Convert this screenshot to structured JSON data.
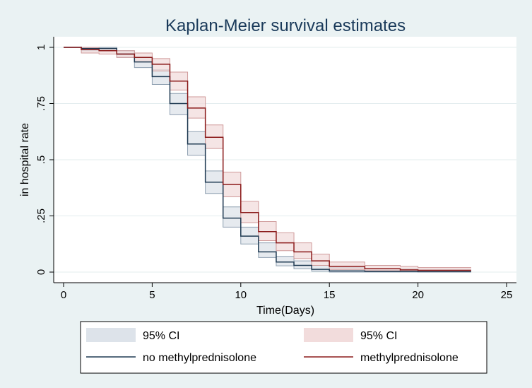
{
  "chart_data": {
    "type": "line",
    "title": "Kaplan-Meier survival estimates",
    "xlabel": "Time(Days)",
    "ylabel": "in hospital rate",
    "xlim": [
      0,
      25
    ],
    "ylim": [
      0,
      1
    ],
    "x_ticks": [
      "0",
      "5",
      "10",
      "15",
      "20",
      "25"
    ],
    "y_ticks": [
      "0",
      ".25",
      ".5",
      ".75",
      "1"
    ],
    "grid": true,
    "legend": {
      "position": "bottom",
      "entries": [
        "95% CI",
        "95% CI",
        "no methylprednisolone",
        "methylprednisolone"
      ]
    },
    "series": [
      {
        "name": "no methylprednisolone",
        "color": "#1f3a52",
        "ci_color": "#dde3ea",
        "ci_edge": "#8e9fb0",
        "steps": [
          {
            "t": 0,
            "s": 1.0,
            "lo": 1.0,
            "hi": 1.0
          },
          {
            "t": 1,
            "s": 0.995,
            "lo": 0.985,
            "hi": 1.0
          },
          {
            "t": 3,
            "s": 0.97,
            "lo": 0.955,
            "hi": 0.985
          },
          {
            "t": 4,
            "s": 0.935,
            "lo": 0.91,
            "hi": 0.955
          },
          {
            "t": 5,
            "s": 0.87,
            "lo": 0.835,
            "hi": 0.9
          },
          {
            "t": 6,
            "s": 0.75,
            "lo": 0.7,
            "hi": 0.795
          },
          {
            "t": 7,
            "s": 0.57,
            "lo": 0.52,
            "hi": 0.625
          },
          {
            "t": 8,
            "s": 0.4,
            "lo": 0.35,
            "hi": 0.45
          },
          {
            "t": 9,
            "s": 0.24,
            "lo": 0.2,
            "hi": 0.29
          },
          {
            "t": 10,
            "s": 0.16,
            "lo": 0.125,
            "hi": 0.2
          },
          {
            "t": 11,
            "s": 0.09,
            "lo": 0.065,
            "hi": 0.13
          },
          {
            "t": 12,
            "s": 0.045,
            "lo": 0.028,
            "hi": 0.07
          },
          {
            "t": 13,
            "s": 0.03,
            "lo": 0.015,
            "hi": 0.05
          },
          {
            "t": 14,
            "s": 0.012,
            "lo": 0.004,
            "hi": 0.03
          },
          {
            "t": 15,
            "s": 0.005,
            "lo": 0.0,
            "hi": 0.02
          },
          {
            "t": 17,
            "s": 0.003,
            "lo": 0.0,
            "hi": 0.015
          },
          {
            "t": 20,
            "s": 0.002,
            "lo": 0.0,
            "hi": 0.01
          },
          {
            "t": 23,
            "s": 0.002,
            "lo": 0.0,
            "hi": 0.01
          }
        ]
      },
      {
        "name": "methylprednisolone",
        "color": "#8b1a1a",
        "ci_color": "#f2dcdc",
        "ci_edge": "#cf9a9a",
        "steps": [
          {
            "t": 0,
            "s": 1.0,
            "lo": 1.0,
            "hi": 1.0
          },
          {
            "t": 1,
            "s": 0.99,
            "lo": 0.975,
            "hi": 1.0
          },
          {
            "t": 2,
            "s": 0.985,
            "lo": 0.97,
            "hi": 0.995
          },
          {
            "t": 3,
            "s": 0.97,
            "lo": 0.955,
            "hi": 0.985
          },
          {
            "t": 4,
            "s": 0.955,
            "lo": 0.935,
            "hi": 0.975
          },
          {
            "t": 5,
            "s": 0.925,
            "lo": 0.895,
            "hi": 0.95
          },
          {
            "t": 6,
            "s": 0.85,
            "lo": 0.81,
            "hi": 0.89
          },
          {
            "t": 7,
            "s": 0.73,
            "lo": 0.685,
            "hi": 0.78
          },
          {
            "t": 8,
            "s": 0.6,
            "lo": 0.55,
            "hi": 0.655
          },
          {
            "t": 9,
            "s": 0.39,
            "lo": 0.335,
            "hi": 0.445
          },
          {
            "t": 10,
            "s": 0.265,
            "lo": 0.22,
            "hi": 0.315
          },
          {
            "t": 11,
            "s": 0.18,
            "lo": 0.14,
            "hi": 0.225
          },
          {
            "t": 12,
            "s": 0.13,
            "lo": 0.095,
            "hi": 0.175
          },
          {
            "t": 13,
            "s": 0.09,
            "lo": 0.06,
            "hi": 0.13
          },
          {
            "t": 14,
            "s": 0.05,
            "lo": 0.03,
            "hi": 0.08
          },
          {
            "t": 15,
            "s": 0.025,
            "lo": 0.012,
            "hi": 0.045
          },
          {
            "t": 17,
            "s": 0.015,
            "lo": 0.006,
            "hi": 0.03
          },
          {
            "t": 19,
            "s": 0.01,
            "lo": 0.003,
            "hi": 0.025
          },
          {
            "t": 20,
            "s": 0.008,
            "lo": 0.002,
            "hi": 0.02
          },
          {
            "t": 23,
            "s": 0.008,
            "lo": 0.002,
            "hi": 0.02
          }
        ]
      }
    ]
  }
}
